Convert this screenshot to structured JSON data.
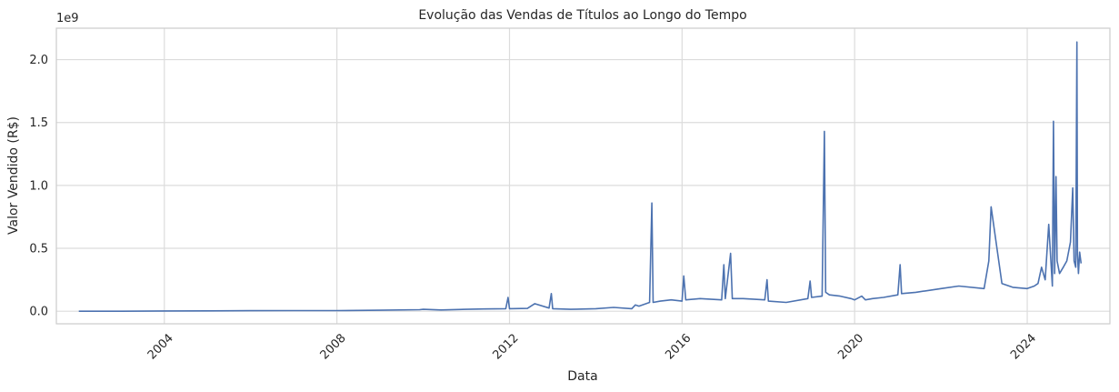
{
  "chart_data": {
    "type": "line",
    "title": "Evolução das Vendas de Títulos ao Longo do Tempo",
    "xlabel": "Data",
    "ylabel": "Valor Vendido (R$)",
    "y_offset_label": "1e9",
    "x_ticks": [
      "2004",
      "2008",
      "2012",
      "2016",
      "2020",
      "2024"
    ],
    "y_ticks": [
      "0.0",
      "0.5",
      "1.0",
      "1.5",
      "2.0"
    ],
    "y_tick_values": [
      0.0,
      0.5,
      1.0,
      1.5,
      2.0
    ],
    "xlim": [
      "2001-07-01",
      "2025-12-01"
    ],
    "ylim": [
      -0.1,
      2.25
    ],
    "y_unit_multiplier": 1000000000,
    "grid": true,
    "legend": "none",
    "line_color": "#4c72b0",
    "series": [
      {
        "x": [
          "2002-01-07",
          "2003-01-01",
          "2004-01-01",
          "2005-01-01",
          "2006-01-01",
          "2007-01-01",
          "2008-01-01",
          "2009-01-01",
          "2009-12-01",
          "2010-01-01",
          "2010-06-01",
          "2011-01-01",
          "2011-06-01",
          "2011-12-01",
          "2011-12-20",
          "2012-01-01",
          "2012-06-01",
          "2012-08-01",
          "2012-12-01",
          "2012-12-20",
          "2013-01-01",
          "2013-06-01",
          "2014-01-01",
          "2014-06-01",
          "2014-11-01",
          "2014-12-01",
          "2015-01-01",
          "2015-04-01",
          "2015-04-20",
          "2015-05-01",
          "2015-07-01",
          "2015-10-01",
          "2016-01-01",
          "2016-01-15",
          "2016-02-01",
          "2016-06-01",
          "2016-12-01",
          "2016-12-20",
          "2017-01-01",
          "2017-02-15",
          "2017-03-01",
          "2017-06-01",
          "2017-12-01",
          "2017-12-20",
          "2018-01-01",
          "2018-06-01",
          "2018-12-01",
          "2018-12-20",
          "2019-01-01",
          "2019-04-01",
          "2019-04-20",
          "2019-05-01",
          "2019-06-01",
          "2019-09-01",
          "2019-12-01",
          "2020-01-01",
          "2020-03-01",
          "2020-04-01",
          "2020-06-01",
          "2020-09-01",
          "2021-01-01",
          "2021-01-20",
          "2021-02-01",
          "2021-06-01",
          "2022-01-01",
          "2022-06-01",
          "2023-01-01",
          "2023-02-10",
          "2023-03-01",
          "2023-06-01",
          "2023-09-01",
          "2024-01-01",
          "2024-03-01",
          "2024-04-01",
          "2024-05-01",
          "2024-06-01",
          "2024-07-01",
          "2024-08-01",
          "2024-08-10",
          "2024-08-20",
          "2024-09-01",
          "2024-09-10",
          "2024-10-01",
          "2024-11-01",
          "2024-12-01",
          "2025-01-01",
          "2025-01-20",
          "2025-02-01",
          "2025-02-15",
          "2025-02-25",
          "2025-03-01",
          "2025-03-10",
          "2025-03-20",
          "2025-04-01"
        ],
        "values": [
          0.0,
          0.0,
          0.002,
          0.003,
          0.004,
          0.005,
          0.005,
          0.008,
          0.012,
          0.015,
          0.01,
          0.015,
          0.018,
          0.02,
          0.11,
          0.02,
          0.022,
          0.06,
          0.025,
          0.14,
          0.02,
          0.015,
          0.02,
          0.03,
          0.02,
          0.05,
          0.04,
          0.07,
          0.86,
          0.07,
          0.08,
          0.09,
          0.08,
          0.28,
          0.09,
          0.1,
          0.09,
          0.37,
          0.1,
          0.46,
          0.1,
          0.1,
          0.09,
          0.25,
          0.08,
          0.07,
          0.1,
          0.24,
          0.11,
          0.12,
          1.43,
          0.15,
          0.13,
          0.12,
          0.1,
          0.09,
          0.12,
          0.09,
          0.1,
          0.11,
          0.13,
          0.37,
          0.14,
          0.15,
          0.18,
          0.2,
          0.18,
          0.4,
          0.83,
          0.22,
          0.19,
          0.18,
          0.2,
          0.22,
          0.35,
          0.25,
          0.69,
          0.2,
          1.51,
          0.3,
          1.07,
          0.4,
          0.3,
          0.35,
          0.4,
          0.55,
          0.98,
          0.4,
          0.35,
          2.14,
          0.45,
          0.3,
          0.47,
          0.38
        ]
      }
    ]
  }
}
